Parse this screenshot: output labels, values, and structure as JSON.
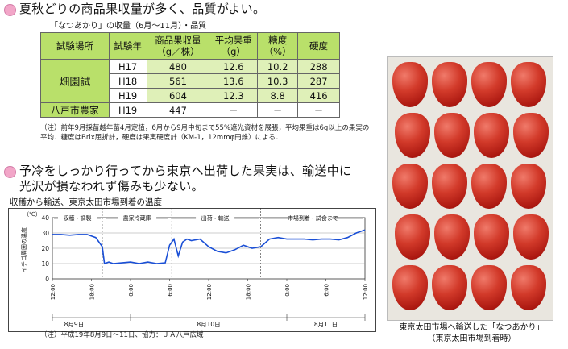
{
  "heading1": "夏秋どりの商品果収量が多く、品質がよい。",
  "table_title": "「なつあかり」の収量（6月～11月）・品質",
  "table": {
    "headers": [
      "試験場所",
      "試験年",
      "商品果収量\n（g／株）",
      "平均果重\n（g）",
      "糖度\n（%）",
      "硬度"
    ],
    "site_farm": "畑園試",
    "site_hachinohe": "八戸市農家",
    "rows": [
      [
        "H17",
        "480",
        "12.6",
        "10.2",
        "288"
      ],
      [
        "H18",
        "561",
        "13.6",
        "10.3",
        "287"
      ],
      [
        "H19",
        "604",
        "12.3",
        "8.8",
        "416"
      ],
      [
        "H19",
        "447",
        "－",
        "－",
        "－"
      ]
    ]
  },
  "note1": "（注）前年9月採苗越年苗4月定植，6月から9月中旬まで55%遮光資材を展張，平均果重は6g以上の果実の平均．糖度はBrix屈折計，硬度は果実硬度計（KM-1，12mmφ円錐）による．",
  "heading2_line1": "予冷をしっかり行ってから東京へ出荷した果実は、輸送中に",
  "heading2_line2": "光沢が損なわれず傷みも少ない。",
  "chart_title": "収穫から輸送、東京太田市場到着の温度",
  "chart_data": {
    "type": "line",
    "title": "収穫から輸送、東京太田市場到着の温度",
    "ylabel": "イチゴ周囲の温度",
    "y_unit": "（℃）",
    "ylim": [
      0,
      40
    ],
    "y_ticks": [
      "40",
      "30",
      "20",
      "10",
      "0"
    ],
    "x_ticks": [
      "12:00",
      "18:00",
      "0:00",
      "6:00",
      "12:00",
      "18:00",
      "0:00",
      "6:00",
      "12:00"
    ],
    "date_labels": [
      "8月9日",
      "8月10日",
      "8月11日"
    ],
    "phases": [
      "収穫・調製",
      "農家冷蔵庫",
      "出荷・輸送",
      "市場到着・試食まで"
    ],
    "x": [
      0,
      2,
      4,
      6,
      8,
      10,
      11.5,
      12,
      13,
      14,
      16,
      18,
      20,
      22,
      24,
      26,
      27,
      28,
      29,
      30,
      31,
      32,
      34,
      36,
      38,
      40,
      42,
      44,
      46,
      48,
      50,
      52,
      54,
      56,
      58,
      60,
      62,
      64,
      66,
      68,
      70,
      72
    ],
    "values": [
      29,
      29,
      28.5,
      29,
      29,
      27,
      21,
      10,
      11,
      10,
      10.5,
      11,
      10,
      11,
      10,
      10.5,
      22,
      26,
      15,
      24,
      26,
      25,
      26,
      21,
      18,
      17,
      19,
      22,
      20,
      21,
      26,
      27,
      26,
      26,
      26,
      25.5,
      26,
      26,
      25.5,
      27,
      30,
      32
    ]
  },
  "note2": "（注）平成19年8月9日～11日、協力：ＪＡ八戸広域",
  "photo_caption_line1": "東京太田市場へ輸送した「なつあかり」",
  "photo_caption_line2": "（東京太田市場到着時）"
}
